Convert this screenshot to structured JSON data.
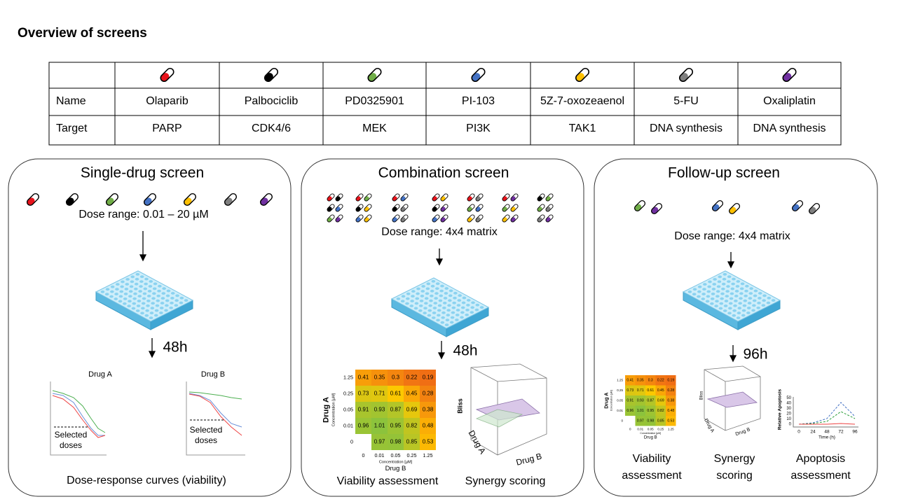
{
  "title": "Overview of screens",
  "table": {
    "row_labels": [
      "Name",
      "Target"
    ],
    "drugs": [
      {
        "name": "Olaparib",
        "target": "PARP",
        "color": "#e8131b"
      },
      {
        "name": "Palbociclib",
        "target": "CDK4/6",
        "color": "#000000"
      },
      {
        "name": "PD0325901",
        "target": "MEK",
        "color": "#70ad47"
      },
      {
        "name": "PI-103",
        "target": "PI3K",
        "color": "#4472c4"
      },
      {
        "name": "5Z-7-oxozeaenol",
        "target": "TAK1",
        "color": "#ffc000"
      },
      {
        "name": "5-FU",
        "target": "DNA synthesis",
        "color": "#7f7f7f"
      },
      {
        "name": "Oxaliplatin",
        "target": "DNA synthesis",
        "color": "#7030a0"
      }
    ]
  },
  "single": {
    "title": "Single-drug screen",
    "dose_range": "Dose range: 0.01 – 20 µM",
    "incubation": "48h",
    "plots": [
      "Drug A",
      "Drug B"
    ],
    "annotation": [
      "Selected",
      "doses"
    ],
    "caption": "Dose-response curves (viability)"
  },
  "combination": {
    "title": "Combination screen",
    "dose_range": "Dose range: 4x4 matrix",
    "incubation": "48h",
    "heatmap": {
      "y_label": "Drug A",
      "y_sublabel": "Concentration [µM]",
      "x_label": "Drug B",
      "x_sublabel": "Concentration [µM]",
      "yticks": [
        "1.25",
        "0.25",
        "0.05",
        "0.01",
        "0"
      ],
      "xticks": [
        "0",
        "0.01",
        "0.05",
        "0.25",
        "1.25"
      ],
      "rows": [
        [
          0.41,
          0.35,
          0.3,
          0.22,
          0.19
        ],
        [
          0.73,
          0.71,
          0.61,
          0.45,
          0.28
        ],
        [
          0.91,
          0.93,
          0.87,
          0.69,
          0.38
        ],
        [
          0.96,
          1.01,
          0.95,
          0.82,
          0.48
        ],
        [
          null,
          0.97,
          0.98,
          0.85,
          0.53
        ]
      ]
    },
    "synergy": {
      "z_label": "Bliss",
      "x_label": "Drug A",
      "y_label": "Drug B"
    },
    "captions": [
      "Viability assessment",
      "Synergy scoring"
    ]
  },
  "follow_up": {
    "title": "Follow-up screen",
    "dose_range": "Dose range: 4x4 matrix",
    "incubation": "96h",
    "apoptosis": {
      "y_label": "Relative Apoptosis",
      "x_label": "Time (h)",
      "xticks": [
        "0",
        "24",
        "48",
        "72",
        "96"
      ],
      "yticks": [
        "0",
        "10",
        "20",
        "30",
        "40",
        "50"
      ]
    },
    "captions": [
      [
        "Viability",
        "assessment"
      ],
      [
        "Synergy",
        "scoring"
      ],
      [
        "Apoptosis",
        "assessment"
      ]
    ]
  }
}
